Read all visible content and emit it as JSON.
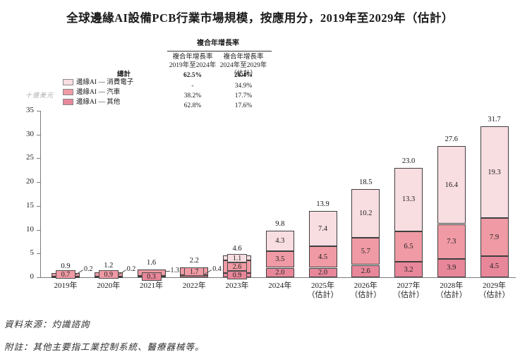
{
  "title": "全球邊緣AI設備PCB行業市場規模，按應用分，2019年至2029年（估計）",
  "y_axis": {
    "unit_label": "十億美元"
  },
  "legend": {
    "total_label": "總計",
    "items": [
      {
        "label": "邊緣AI — 消費電子",
        "color": "#f8dde1"
      },
      {
        "label": "邊緣AI — 汽車",
        "color": "#ef9aa4"
      },
      {
        "label": "邊緣AI — 其他",
        "color": "#e8879a"
      }
    ]
  },
  "cagr_table": {
    "title": "複合年增長率",
    "col1_header_line1": "複合年增長率",
    "col1_header_line2": "2019年至2024年",
    "col2_header_line1": "複合年增長率",
    "col2_header_line2": "2024年至2029年",
    "col2_header_line3": "（估計）",
    "rows": [
      {
        "c1": "62.5%",
        "c2": "26.4%"
      },
      {
        "c1": "-",
        "c2": "34.9%"
      },
      {
        "c1": "38.2%",
        "c2": "17.7%"
      },
      {
        "c1": "62.8%",
        "c2": "17.6%"
      }
    ]
  },
  "chart_data": {
    "type": "bar",
    "stacked": true,
    "title": "全球邊緣AI設備PCB行業市場規模，按應用分，2019年至2029年（估計）",
    "ylabel": "十億美元",
    "ylim": [
      0,
      35
    ],
    "yticks": [
      0,
      5,
      10,
      15,
      20,
      25,
      30,
      35
    ],
    "grid": false,
    "legend_position": "upper-left",
    "categories": [
      "2019年",
      "2020年",
      "2021年",
      "2022年",
      "2023年",
      "2024年",
      "2025年",
      "2026年",
      "2027年",
      "2028年",
      "2029年"
    ],
    "estimate_suffix": "（估計）",
    "estimate_from_index": 6,
    "series": [
      {
        "name": "邊緣AI — 其他",
        "color": "#e8879a",
        "values": [
          0.2,
          0.2,
          0.3,
          0.4,
          0.9,
          2.0,
          2.0,
          2.6,
          3.2,
          3.9,
          4.5
        ],
        "label_modes": [
          "leader-d",
          "leader-d",
          "box",
          "leader-d",
          "box",
          "in",
          "in",
          "in",
          "in",
          "in",
          "in"
        ]
      },
      {
        "name": "邊緣AI — 汽車",
        "color": "#ef9aa4",
        "values": [
          0.7,
          0.9,
          1.3,
          1.7,
          2.6,
          3.5,
          4.5,
          5.7,
          6.5,
          7.3,
          7.9
        ],
        "label_modes": [
          "box",
          "box",
          "leader-h",
          "box",
          "box",
          "in",
          "in",
          "in",
          "in",
          "in",
          "in"
        ]
      },
      {
        "name": "邊緣AI — 消費電子",
        "color": "#f8dde1",
        "values": [
          null,
          null,
          null,
          null,
          1.1,
          4.3,
          7.4,
          10.2,
          13.3,
          16.4,
          19.3
        ],
        "label_modes": [
          "",
          "",
          "",
          "",
          "box",
          "in",
          "in",
          "in",
          "in",
          "in",
          "in"
        ]
      }
    ],
    "totals": [
      "0.9",
      "1.2",
      "1.6",
      "2.2",
      "4.6",
      "9.8",
      "13.9",
      "18.5",
      "23.0",
      "27.6",
      "31.7"
    ]
  },
  "footer": {
    "source": "資料來源：灼識諮詢",
    "note": "附註：其他主要指工業控制系統、醫療器械等。"
  }
}
